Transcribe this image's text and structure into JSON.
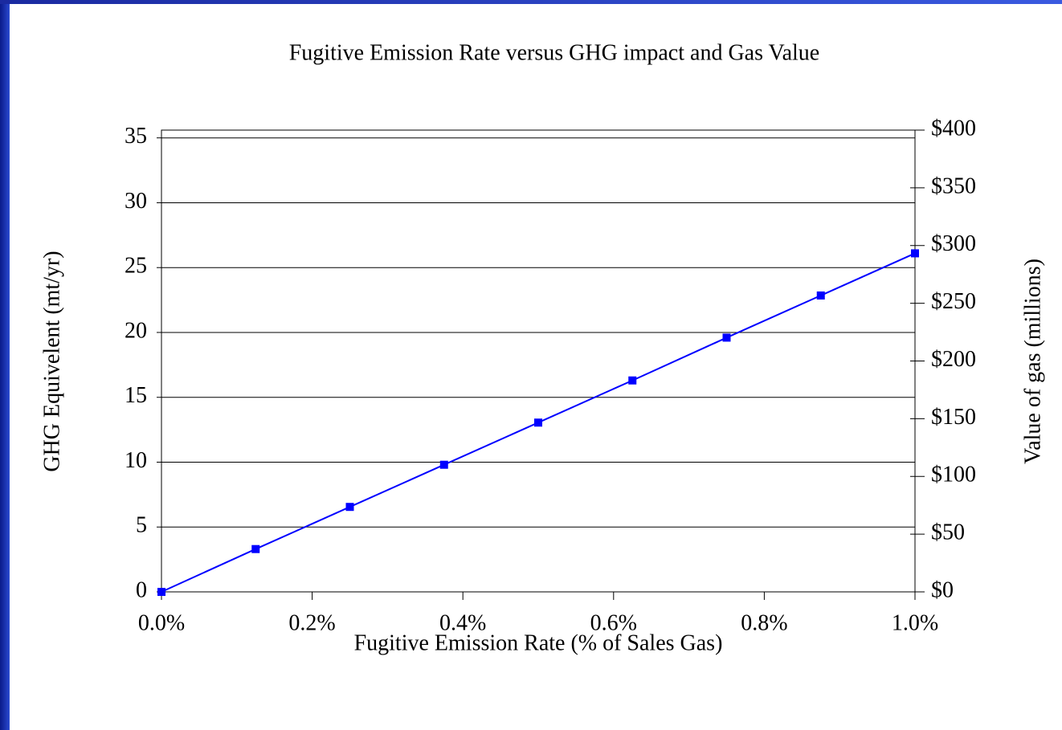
{
  "chart_data": {
    "type": "line",
    "title": "Fugitive Emission Rate versus GHG impact and Gas Value",
    "x_label": "Fugitive Emission Rate (% of Sales Gas)",
    "y_label": "GHG Equivelent (mt/yr)",
    "y2_label": "Value of gas (millions)",
    "x": [
      0,
      0.125,
      0.25,
      0.375,
      0.5,
      0.625,
      0.75,
      0.875,
      1.0
    ],
    "series": [
      {
        "name": "GHG Equivelent",
        "color": "#0000ff",
        "values": [
          0,
          3.3,
          6.55,
          9.8,
          13.05,
          16.3,
          19.6,
          22.85,
          26.1
        ]
      }
    ],
    "xlim": [
      0,
      1.0
    ],
    "xticks": [
      {
        "value": 0,
        "label": "0.0%"
      },
      {
        "value": 0.2,
        "label": "0.2%"
      },
      {
        "value": 0.4,
        "label": "0.4%"
      },
      {
        "value": 0.6,
        "label": "0.6%"
      },
      {
        "value": 0.8,
        "label": "0.8%"
      },
      {
        "value": 1.0,
        "label": "1.0%"
      }
    ],
    "ylim": [
      0,
      35.6
    ],
    "yticks": [
      0,
      5,
      10,
      15,
      20,
      25,
      30,
      35
    ],
    "y2lim": [
      0,
      400
    ],
    "y2ticks": [
      {
        "value": 0,
        "label": "$0"
      },
      {
        "value": 50,
        "label": "$50"
      },
      {
        "value": 100,
        "label": "$100"
      },
      {
        "value": 150,
        "label": "$150"
      },
      {
        "value": 200,
        "label": "$200"
      },
      {
        "value": 250,
        "label": "$250"
      },
      {
        "value": 300,
        "label": "$300"
      },
      {
        "value": 350,
        "label": "$350"
      },
      {
        "value": 400,
        "label": "$400"
      }
    ],
    "grid": true
  }
}
